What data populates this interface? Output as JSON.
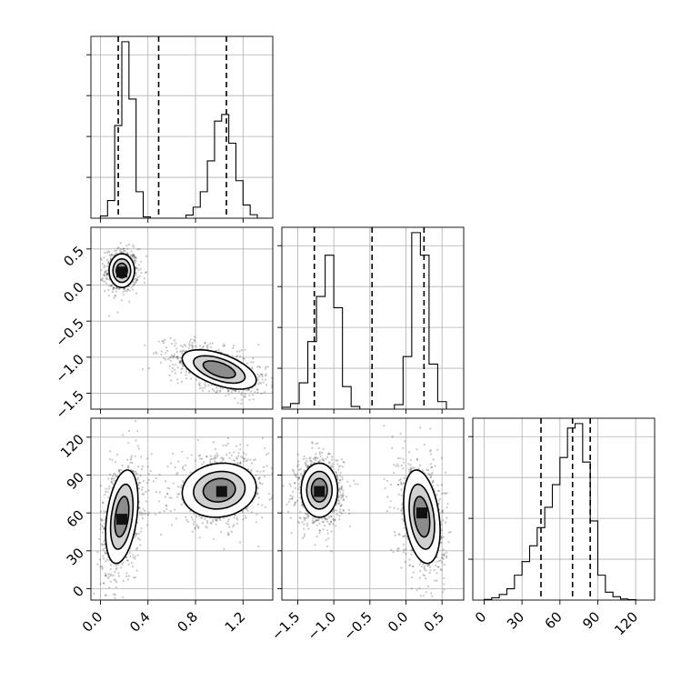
{
  "chart_data": {
    "type": "corner",
    "grid": true,
    "parameters": [
      {
        "range": [
          -0.08,
          1.45
        ],
        "tick_values": [
          0.0,
          0.4,
          0.8,
          1.2
        ],
        "tick_labels": [
          "0.0",
          "0.4",
          "0.8",
          "1.2"
        ],
        "quantiles": [
          0.15,
          0.49,
          1.06
        ],
        "histogram": {
          "bin_edges": [
            0.0,
            0.06,
            0.12,
            0.18,
            0.24,
            0.3,
            0.36,
            0.42,
            0.48,
            0.54,
            0.6,
            0.66,
            0.72,
            0.78,
            0.84,
            0.9,
            0.96,
            1.02,
            1.08,
            1.14,
            1.2,
            1.26,
            1.32,
            1.38
          ],
          "counts": [
            0.5,
            4,
            21,
            40,
            27,
            6,
            0.3,
            0,
            0,
            0,
            0,
            0,
            0.7,
            2.5,
            6,
            13,
            22,
            23.5,
            17,
            8.5,
            3,
            0.8,
            0
          ]
        }
      },
      {
        "range": [
          -1.72,
          0.8
        ],
        "tick_values": [
          -1.5,
          -1.0,
          -0.5,
          0.0,
          0.5
        ],
        "tick_labels": [
          "−1.5",
          "−1.0",
          "−0.5",
          "0.0",
          "0.5"
        ],
        "quantiles": [
          -1.27,
          -0.47,
          0.25
        ],
        "histogram": {
          "bin_edges": [
            -1.72,
            -1.6,
            -1.48,
            -1.36,
            -1.24,
            -1.12,
            -1.0,
            -0.88,
            -0.76,
            -0.64,
            -0.52,
            -0.4,
            -0.28,
            -0.16,
            -0.04,
            0.08,
            0.2,
            0.32,
            0.44,
            0.56
          ],
          "counts": [
            0.5,
            1.5,
            7,
            18,
            30,
            41,
            27,
            6,
            0.7,
            0,
            0,
            0,
            0,
            1.2,
            14,
            47,
            41,
            12,
            2,
            0
          ]
        }
      },
      {
        "range": [
          -9,
          135
        ],
        "tick_values": [
          0,
          30,
          60,
          90,
          120
        ],
        "tick_labels": [
          "0",
          "30",
          "60",
          "90",
          "120"
        ],
        "quantiles": [
          45,
          70,
          84
        ],
        "histogram": {
          "bin_edges": [
            0,
            6,
            12,
            18,
            24,
            30,
            36,
            42,
            48,
            54,
            60,
            66,
            72,
            78,
            84,
            90,
            96,
            102,
            108,
            114,
            120
          ],
          "counts": [
            0.3,
            1,
            2.5,
            5,
            11,
            17,
            24,
            32,
            41,
            51,
            63,
            76,
            78,
            61,
            35,
            11,
            3.5,
            1.5,
            0.5,
            0.2
          ]
        }
      }
    ],
    "pairs": [
      {
        "x_param": 0,
        "y_param": 1,
        "clusters": [
          {
            "cx": 0.18,
            "cy": 0.2,
            "sx": 0.055,
            "sy": 0.12,
            "rho": 0.0,
            "weight": 1.0,
            "n_points": 650
          },
          {
            "cx": 1.0,
            "cy": -1.17,
            "sx": 0.16,
            "sy": 0.14,
            "rho": -0.55,
            "weight": 0.45,
            "n_points": 900
          }
        ],
        "contour_levels": [
          0.15,
          0.4,
          0.7
        ],
        "peak_cells": [
          [
            0.18,
            0.18
          ]
        ]
      },
      {
        "x_param": 0,
        "y_param": 2,
        "clusters": [
          {
            "cx": 0.18,
            "cy": 57,
            "sx": 0.07,
            "sy": 19,
            "rho": 0.35,
            "weight": 0.8,
            "n_points": 800
          },
          {
            "cx": 1.0,
            "cy": 78,
            "sx": 0.16,
            "sy": 11,
            "rho": 0.1,
            "weight": 0.85,
            "n_points": 900
          }
        ],
        "contour_levels": [
          0.15,
          0.4,
          0.7
        ],
        "peak_cells": [
          [
            0.18,
            55
          ],
          [
            1.02,
            77
          ]
        ]
      },
      {
        "x_param": 1,
        "y_param": 2,
        "clusters": [
          {
            "cx": -1.2,
            "cy": 78,
            "sx": 0.13,
            "sy": 11,
            "rho": 0.0,
            "weight": 0.85,
            "n_points": 900
          },
          {
            "cx": 0.22,
            "cy": 57,
            "sx": 0.13,
            "sy": 19,
            "rho": -0.3,
            "weight": 0.8,
            "n_points": 800
          }
        ],
        "contour_levels": [
          0.15,
          0.4,
          0.7
        ],
        "peak_cells": [
          [
            -1.2,
            77
          ],
          [
            0.22,
            60
          ]
        ]
      }
    ]
  }
}
